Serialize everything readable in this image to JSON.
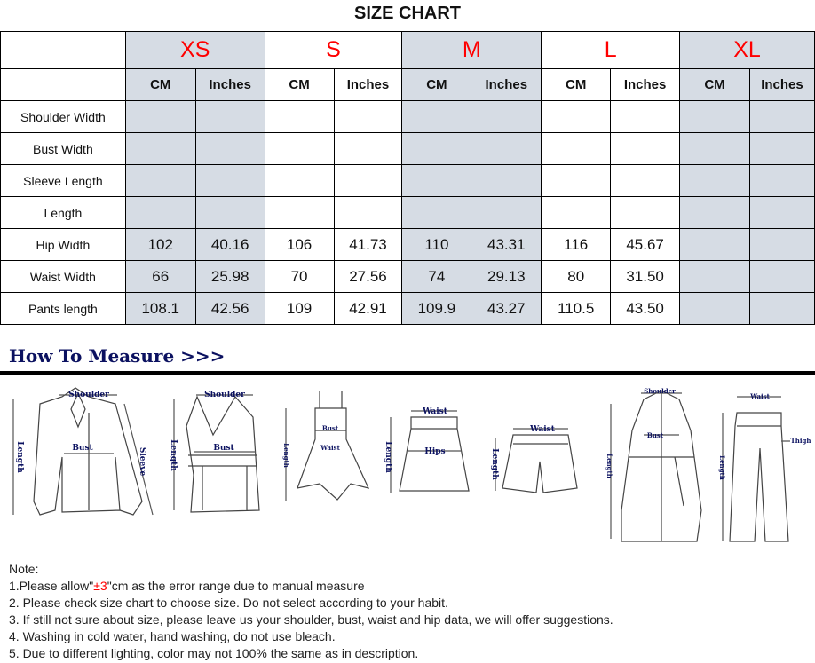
{
  "title": "SIZE CHART",
  "sizes": [
    "XS",
    "S",
    "M",
    "L",
    "XL"
  ],
  "units": {
    "cm": "CM",
    "inches": "Inches"
  },
  "rows": [
    {
      "label": "Shoulder Width",
      "values": [
        "",
        "",
        "",
        "",
        "",
        "",
        "",
        "",
        "",
        ""
      ]
    },
    {
      "label": "Bust Width",
      "values": [
        "",
        "",
        "",
        "",
        "",
        "",
        "",
        "",
        "",
        ""
      ]
    },
    {
      "label": "Sleeve Length",
      "values": [
        "",
        "",
        "",
        "",
        "",
        "",
        "",
        "",
        "",
        ""
      ]
    },
    {
      "label": "Length",
      "values": [
        "",
        "",
        "",
        "",
        "",
        "",
        "",
        "",
        "",
        ""
      ]
    },
    {
      "label": "Hip Width",
      "values": [
        "102",
        "40.16",
        "106",
        "41.73",
        "110",
        "43.31",
        "116",
        "45.67",
        "",
        ""
      ]
    },
    {
      "label": "Waist Width",
      "values": [
        "66",
        "25.98",
        "70",
        "27.56",
        "74",
        "29.13",
        "80",
        "31.50",
        "",
        ""
      ]
    },
    {
      "label": "Pants length",
      "values": [
        "108.1",
        "42.56",
        "109",
        "42.91",
        "109.9",
        "43.27",
        "110.5",
        "43.50",
        "",
        ""
      ]
    }
  ],
  "how_to_measure": "How To Measure >>>",
  "figure_labels": {
    "shoulder": "Shoulder",
    "bust": "Bust",
    "sleeve": "Sleeve",
    "length": "Length",
    "waist": "Waist",
    "hips": "Hips",
    "thigh": "Thigh"
  },
  "notes": {
    "heading": "Note:",
    "n1_pre": "1.Please allow\"",
    "n1_red": "±3",
    "n1_post": "\"cm as the error range due to manual measure",
    "n2": "2. Please check size chart to choose size. Do not select according to your habit.",
    "n3": "3. If still not sure about size, please leave us your shoulder, bust, waist and hip data, we will offer suggestions.",
    "n4": "4. Washing in cold water, hand washing, do not use bleach.",
    "n5": "5. Due to different lighting, color may not 100% the same as in description."
  },
  "colors": {
    "size_label": "#ff0000",
    "shaded_column": "#d6dce4",
    "measure_heading": "#0b1160"
  }
}
